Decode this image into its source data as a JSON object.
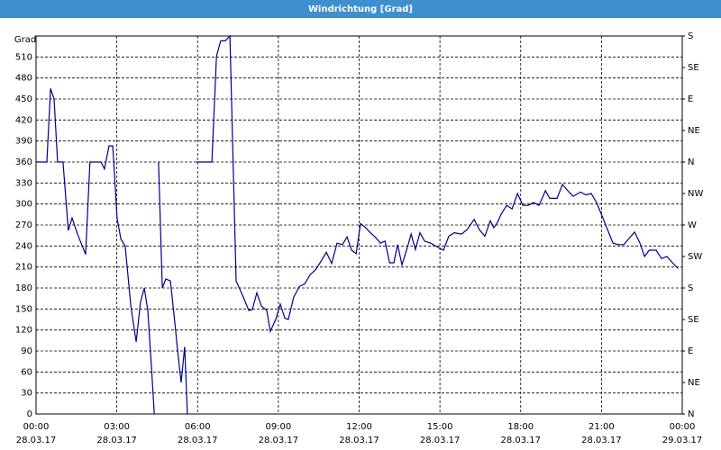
{
  "chart_data": {
    "type": "line",
    "title": "Windrichtung [Grad]",
    "ylabel": "Grad",
    "x": [
      0,
      0.4,
      0.54,
      0.67,
      0.8,
      1.0,
      1.2,
      1.34,
      1.54,
      1.84,
      2.0,
      2.41,
      2.54,
      2.71,
      2.85,
      3.01,
      3.15,
      3.31,
      3.52,
      3.72,
      3.88,
      4.02,
      4.15,
      4.29,
      4.39,
      4.45,
      4.55,
      4.69,
      4.82,
      4.99,
      5.16,
      5.26,
      5.39,
      5.52,
      5.62,
      5.7,
      5.96,
      6.53,
      6.7,
      6.86,
      7.03,
      7.2,
      7.43,
      7.7,
      7.9,
      8.03,
      8.2,
      8.37,
      8.57,
      8.7,
      8.9,
      9.07,
      9.24,
      9.37,
      9.57,
      9.78,
      9.98,
      10.18,
      10.38,
      10.58,
      10.78,
      10.98,
      11.18,
      11.38,
      11.55,
      11.72,
      11.89,
      12.05,
      12.22,
      12.39,
      12.59,
      12.79,
      12.96,
      13.13,
      13.29,
      13.43,
      13.59,
      13.79,
      13.93,
      14.09,
      14.26,
      14.43,
      14.66,
      14.93,
      15.13,
      15.33,
      15.53,
      15.8,
      16.0,
      16.27,
      16.47,
      16.67,
      16.87,
      17.0,
      17.14,
      17.27,
      17.48,
      17.68,
      17.88,
      18.08,
      18.28,
      18.48,
      18.68,
      18.92,
      19.08,
      19.35,
      19.55,
      19.75,
      19.95,
      20.22,
      20.42,
      20.62,
      20.82,
      21.02,
      21.23,
      21.43,
      21.63,
      21.83,
      22.03,
      22.23,
      22.43,
      22.6,
      22.77,
      23.03,
      23.23,
      23.43,
      23.64,
      23.84
    ],
    "series": [
      {
        "name": "Windrichtung",
        "color": "#00008b",
        "values": [
          360,
          360,
          465,
          450,
          360,
          360,
          262,
          280,
          257,
          228,
          360,
          360,
          350,
          383,
          383,
          280,
          250,
          240,
          154,
          103,
          160,
          180,
          148,
          64,
          0,
          null,
          360,
          180,
          193,
          190,
          128,
          90,
          45,
          96,
          0,
          null,
          360,
          360,
          511,
          533,
          533,
          540,
          190,
          167,
          148,
          149,
          173,
          154,
          148,
          118,
          135,
          157,
          137,
          135,
          167,
          182,
          186,
          199,
          206,
          218,
          231,
          215,
          244,
          242,
          253,
          234,
          229,
          272,
          267,
          260,
          253,
          244,
          247,
          216,
          216,
          242,
          213,
          238,
          257,
          235,
          259,
          247,
          244,
          238,
          234,
          254,
          259,
          257,
          263,
          278,
          263,
          254,
          276,
          266,
          274,
          285,
          298,
          293,
          315,
          298,
          298,
          302,
          298,
          319,
          308,
          308,
          328,
          319,
          311,
          317,
          313,
          315,
          302,
          283,
          263,
          244,
          242,
          242,
          251,
          260,
          244,
          225,
          234,
          234,
          222,
          225,
          216,
          208
        ]
      }
    ],
    "xlim": [
      0,
      24
    ],
    "xticks": [
      {
        "value": 0,
        "label": "00:00"
      },
      {
        "value": 3,
        "label": "03:00"
      },
      {
        "value": 6,
        "label": "06:00"
      },
      {
        "value": 9,
        "label": "09:00"
      },
      {
        "value": 12,
        "label": "12:00"
      },
      {
        "value": 15,
        "label": "15:00"
      },
      {
        "value": 18,
        "label": "18:00"
      },
      {
        "value": 21,
        "label": "21:00"
      },
      {
        "value": 24,
        "label": "00:00"
      }
    ],
    "xtick_dates": [
      "28.03.17",
      "28.03.17",
      "28.03.17",
      "28.03.17",
      "28.03.17",
      "28.03.17",
      "28.03.17",
      "28.03.17",
      "29.03.17"
    ],
    "ylim": [
      0,
      540
    ],
    "yticks": [
      0,
      30,
      60,
      90,
      120,
      150,
      180,
      210,
      240,
      270,
      300,
      330,
      360,
      390,
      420,
      450,
      480,
      510
    ],
    "y2lim": [
      0,
      540
    ],
    "y2ticks": [
      {
        "value": 0,
        "label": "N"
      },
      {
        "value": 45,
        "label": "NE"
      },
      {
        "value": 90,
        "label": "E"
      },
      {
        "value": 135,
        "label": "SE"
      },
      {
        "value": 180,
        "label": "S"
      },
      {
        "value": 225,
        "label": "SW"
      },
      {
        "value": 270,
        "label": "W"
      },
      {
        "value": 315,
        "label": "NW"
      },
      {
        "value": 360,
        "label": "N"
      },
      {
        "value": 405,
        "label": "NE"
      },
      {
        "value": 450,
        "label": "E"
      },
      {
        "value": 495,
        "label": "SE"
      },
      {
        "value": 540,
        "label": "S"
      }
    ],
    "grid": true
  }
}
